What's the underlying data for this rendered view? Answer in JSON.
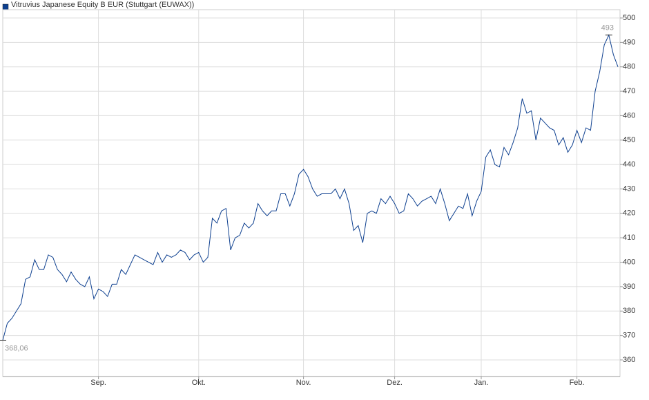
{
  "chart_data": {
    "type": "line",
    "series": [
      {
        "name": "Vitruvius Japanese Equity B EUR (Stuttgart (EUWAX))",
        "color": "#0d3f8f",
        "values": [
          368.06,
          375,
          377,
          380,
          383,
          393,
          394,
          401,
          397,
          397,
          403,
          402,
          397,
          395,
          392,
          396,
          393,
          391,
          390,
          394,
          385,
          389,
          388,
          386,
          391,
          391,
          397,
          395,
          399,
          403,
          402,
          401,
          400,
          399,
          404,
          400,
          403,
          402,
          403,
          405,
          404,
          401,
          403,
          404,
          400,
          402,
          418,
          416,
          421,
          422,
          405,
          410,
          411,
          416,
          414,
          416,
          424,
          421,
          419,
          421,
          421,
          428,
          428,
          423,
          428,
          436,
          438,
          435,
          430,
          427,
          428,
          428,
          428,
          430,
          426,
          430,
          424,
          413,
          415,
          408,
          420,
          421,
          420,
          426,
          424,
          427,
          424,
          420,
          421,
          428,
          426,
          423,
          425,
          426,
          427,
          424,
          430,
          424,
          417,
          420,
          423,
          422,
          428,
          419,
          425,
          429,
          443,
          446,
          440,
          439,
          447,
          444,
          449,
          455,
          467,
          461,
          462,
          450,
          459,
          457,
          455,
          454,
          448,
          451,
          445,
          448,
          454,
          449,
          455,
          454,
          470,
          478,
          489,
          493,
          485,
          480
        ]
      }
    ],
    "categories": [
      null,
      null,
      null,
      null,
      null,
      null,
      null,
      null,
      null,
      null,
      null,
      null,
      null,
      null,
      null,
      null,
      null,
      null,
      null,
      null,
      null,
      "Sep.",
      null,
      null,
      null,
      null,
      null,
      null,
      null,
      null,
      null,
      null,
      null,
      null,
      null,
      null,
      null,
      null,
      null,
      null,
      null,
      null,
      null,
      "Okt.",
      null,
      null,
      null,
      null,
      null,
      null,
      null,
      null,
      null,
      null,
      null,
      null,
      null,
      null,
      null,
      null,
      null,
      null,
      null,
      null,
      null,
      null,
      "Nov.",
      null,
      null,
      null,
      null,
      null,
      null,
      null,
      null,
      null,
      null,
      null,
      null,
      null,
      null,
      null,
      null,
      null,
      null,
      null,
      "Dez.",
      null,
      null,
      null,
      null,
      null,
      null,
      null,
      null,
      null,
      null,
      null,
      null,
      null,
      null,
      null,
      null,
      null,
      null,
      "Jan.",
      null,
      null,
      null,
      null,
      null,
      null,
      null,
      null,
      null,
      null,
      null,
      null,
      null,
      null,
      null,
      null,
      null,
      null,
      null,
      null,
      "Feb.",
      null,
      null,
      null,
      null,
      null,
      null,
      null,
      null,
      null
    ],
    "annotations": [
      "368,06",
      "493"
    ],
    "ylim": [
      353.2,
      503.4
    ],
    "yticks": [
      360,
      370,
      380,
      390,
      400,
      410,
      420,
      430,
      440,
      450,
      460,
      470,
      480,
      490,
      500
    ],
    "grid": true
  }
}
